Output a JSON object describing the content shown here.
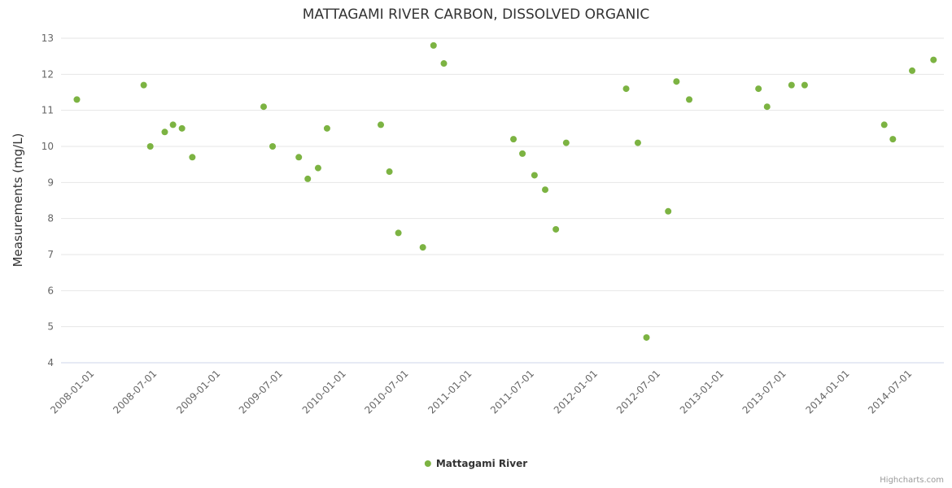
{
  "title": "MATTAGAMI RIVER CARBON, DISSOLVED ORGANIC",
  "credits_label": "Highcharts.com",
  "colors": {
    "point": "#7cb342",
    "grid": "#e6e6e6",
    "axis_line": "#ccd6eb",
    "tick_text": "#666666",
    "title_text": "#333333"
  },
  "chart_data": {
    "type": "scatter",
    "title": "MATTAGAMI RIVER CARBON, DISSOLVED ORGANIC",
    "xlabel": "",
    "ylabel": "Measurements (mg/L)",
    "ylim": [
      4,
      13
    ],
    "xlim": [
      "2007-10-05",
      "2014-10-10"
    ],
    "grid": true,
    "legend_position": "bottom-center",
    "y_ticks": [
      4,
      5,
      6,
      7,
      8,
      9,
      10,
      11,
      12,
      13
    ],
    "x_ticks": [
      "2008-01-01",
      "2008-07-01",
      "2009-01-01",
      "2009-07-01",
      "2010-01-01",
      "2010-07-01",
      "2011-01-01",
      "2011-07-01",
      "2012-01-01",
      "2012-07-01",
      "2013-01-01",
      "2013-07-01",
      "2014-01-01",
      "2014-07-01"
    ],
    "series": [
      {
        "name": "Mattagami River",
        "color": "#7cb342",
        "points": [
          {
            "x": "2007-11-20",
            "y": 11.3
          },
          {
            "x": "2008-06-01",
            "y": 11.7
          },
          {
            "x": "2008-06-20",
            "y": 10.0
          },
          {
            "x": "2008-08-01",
            "y": 10.4
          },
          {
            "x": "2008-08-25",
            "y": 10.6
          },
          {
            "x": "2008-09-20",
            "y": 10.5
          },
          {
            "x": "2008-10-20",
            "y": 9.7
          },
          {
            "x": "2009-05-15",
            "y": 11.1
          },
          {
            "x": "2009-06-10",
            "y": 10.0
          },
          {
            "x": "2009-08-25",
            "y": 9.7
          },
          {
            "x": "2009-09-20",
            "y": 9.1
          },
          {
            "x": "2009-10-20",
            "y": 9.4
          },
          {
            "x": "2009-11-15",
            "y": 10.5
          },
          {
            "x": "2010-04-20",
            "y": 10.6
          },
          {
            "x": "2010-05-15",
            "y": 9.3
          },
          {
            "x": "2010-06-10",
            "y": 7.6
          },
          {
            "x": "2010-08-20",
            "y": 7.2
          },
          {
            "x": "2010-09-20",
            "y": 12.8
          },
          {
            "x": "2010-10-20",
            "y": 12.3
          },
          {
            "x": "2011-05-10",
            "y": 10.2
          },
          {
            "x": "2011-06-05",
            "y": 9.8
          },
          {
            "x": "2011-07-10",
            "y": 9.2
          },
          {
            "x": "2011-08-10",
            "y": 8.8
          },
          {
            "x": "2011-09-10",
            "y": 7.7
          },
          {
            "x": "2011-10-10",
            "y": 10.1
          },
          {
            "x": "2012-04-01",
            "y": 11.6
          },
          {
            "x": "2012-05-05",
            "y": 10.1
          },
          {
            "x": "2012-05-30",
            "y": 4.7
          },
          {
            "x": "2012-08-01",
            "y": 8.2
          },
          {
            "x": "2012-08-25",
            "y": 11.8
          },
          {
            "x": "2012-10-01",
            "y": 11.3
          },
          {
            "x": "2013-04-20",
            "y": 11.6
          },
          {
            "x": "2013-05-15",
            "y": 11.1
          },
          {
            "x": "2013-07-25",
            "y": 11.7
          },
          {
            "x": "2013-09-01",
            "y": 11.7
          },
          {
            "x": "2014-04-20",
            "y": 10.6
          },
          {
            "x": "2014-05-15",
            "y": 10.2
          },
          {
            "x": "2014-07-10",
            "y": 12.1
          },
          {
            "x": "2014-09-10",
            "y": 12.4
          }
        ]
      }
    ]
  }
}
